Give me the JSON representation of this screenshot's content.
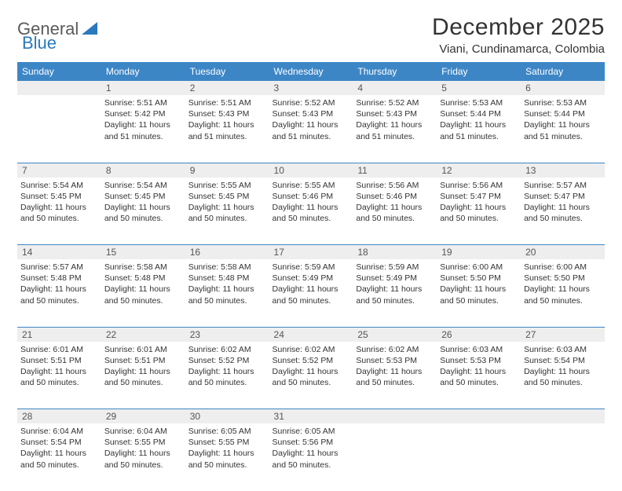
{
  "brand": {
    "part1": "General",
    "part2": "Blue"
  },
  "title": "December 2025",
  "location": "Viani, Cundinamarca, Colombia",
  "colors": {
    "header_bg": "#3d86c6",
    "header_text": "#ffffff",
    "daynum_bg": "#eeeeee",
    "rule": "#3d86c6",
    "brand_gray": "#5a5a5a",
    "brand_blue": "#2a78bd"
  },
  "day_headers": [
    "Sunday",
    "Monday",
    "Tuesday",
    "Wednesday",
    "Thursday",
    "Friday",
    "Saturday"
  ],
  "weeks": [
    {
      "nums": [
        "",
        "1",
        "2",
        "3",
        "4",
        "5",
        "6"
      ],
      "cells": [
        null,
        {
          "sunrise": "5:51 AM",
          "sunset": "5:42 PM",
          "daylight": "11 hours and 51 minutes."
        },
        {
          "sunrise": "5:51 AM",
          "sunset": "5:43 PM",
          "daylight": "11 hours and 51 minutes."
        },
        {
          "sunrise": "5:52 AM",
          "sunset": "5:43 PM",
          "daylight": "11 hours and 51 minutes."
        },
        {
          "sunrise": "5:52 AM",
          "sunset": "5:43 PM",
          "daylight": "11 hours and 51 minutes."
        },
        {
          "sunrise": "5:53 AM",
          "sunset": "5:44 PM",
          "daylight": "11 hours and 51 minutes."
        },
        {
          "sunrise": "5:53 AM",
          "sunset": "5:44 PM",
          "daylight": "11 hours and 51 minutes."
        }
      ]
    },
    {
      "nums": [
        "7",
        "8",
        "9",
        "10",
        "11",
        "12",
        "13"
      ],
      "cells": [
        {
          "sunrise": "5:54 AM",
          "sunset": "5:45 PM",
          "daylight": "11 hours and 50 minutes."
        },
        {
          "sunrise": "5:54 AM",
          "sunset": "5:45 PM",
          "daylight": "11 hours and 50 minutes."
        },
        {
          "sunrise": "5:55 AM",
          "sunset": "5:45 PM",
          "daylight": "11 hours and 50 minutes."
        },
        {
          "sunrise": "5:55 AM",
          "sunset": "5:46 PM",
          "daylight": "11 hours and 50 minutes."
        },
        {
          "sunrise": "5:56 AM",
          "sunset": "5:46 PM",
          "daylight": "11 hours and 50 minutes."
        },
        {
          "sunrise": "5:56 AM",
          "sunset": "5:47 PM",
          "daylight": "11 hours and 50 minutes."
        },
        {
          "sunrise": "5:57 AM",
          "sunset": "5:47 PM",
          "daylight": "11 hours and 50 minutes."
        }
      ]
    },
    {
      "nums": [
        "14",
        "15",
        "16",
        "17",
        "18",
        "19",
        "20"
      ],
      "cells": [
        {
          "sunrise": "5:57 AM",
          "sunset": "5:48 PM",
          "daylight": "11 hours and 50 minutes."
        },
        {
          "sunrise": "5:58 AM",
          "sunset": "5:48 PM",
          "daylight": "11 hours and 50 minutes."
        },
        {
          "sunrise": "5:58 AM",
          "sunset": "5:48 PM",
          "daylight": "11 hours and 50 minutes."
        },
        {
          "sunrise": "5:59 AM",
          "sunset": "5:49 PM",
          "daylight": "11 hours and 50 minutes."
        },
        {
          "sunrise": "5:59 AM",
          "sunset": "5:49 PM",
          "daylight": "11 hours and 50 minutes."
        },
        {
          "sunrise": "6:00 AM",
          "sunset": "5:50 PM",
          "daylight": "11 hours and 50 minutes."
        },
        {
          "sunrise": "6:00 AM",
          "sunset": "5:50 PM",
          "daylight": "11 hours and 50 minutes."
        }
      ]
    },
    {
      "nums": [
        "21",
        "22",
        "23",
        "24",
        "25",
        "26",
        "27"
      ],
      "cells": [
        {
          "sunrise": "6:01 AM",
          "sunset": "5:51 PM",
          "daylight": "11 hours and 50 minutes."
        },
        {
          "sunrise": "6:01 AM",
          "sunset": "5:51 PM",
          "daylight": "11 hours and 50 minutes."
        },
        {
          "sunrise": "6:02 AM",
          "sunset": "5:52 PM",
          "daylight": "11 hours and 50 minutes."
        },
        {
          "sunrise": "6:02 AM",
          "sunset": "5:52 PM",
          "daylight": "11 hours and 50 minutes."
        },
        {
          "sunrise": "6:02 AM",
          "sunset": "5:53 PM",
          "daylight": "11 hours and 50 minutes."
        },
        {
          "sunrise": "6:03 AM",
          "sunset": "5:53 PM",
          "daylight": "11 hours and 50 minutes."
        },
        {
          "sunrise": "6:03 AM",
          "sunset": "5:54 PM",
          "daylight": "11 hours and 50 minutes."
        }
      ]
    },
    {
      "nums": [
        "28",
        "29",
        "30",
        "31",
        "",
        "",
        ""
      ],
      "cells": [
        {
          "sunrise": "6:04 AM",
          "sunset": "5:54 PM",
          "daylight": "11 hours and 50 minutes."
        },
        {
          "sunrise": "6:04 AM",
          "sunset": "5:55 PM",
          "daylight": "11 hours and 50 minutes."
        },
        {
          "sunrise": "6:05 AM",
          "sunset": "5:55 PM",
          "daylight": "11 hours and 50 minutes."
        },
        {
          "sunrise": "6:05 AM",
          "sunset": "5:56 PM",
          "daylight": "11 hours and 50 minutes."
        },
        null,
        null,
        null
      ]
    }
  ],
  "labels": {
    "sunrise": "Sunrise:",
    "sunset": "Sunset:",
    "daylight": "Daylight:"
  }
}
